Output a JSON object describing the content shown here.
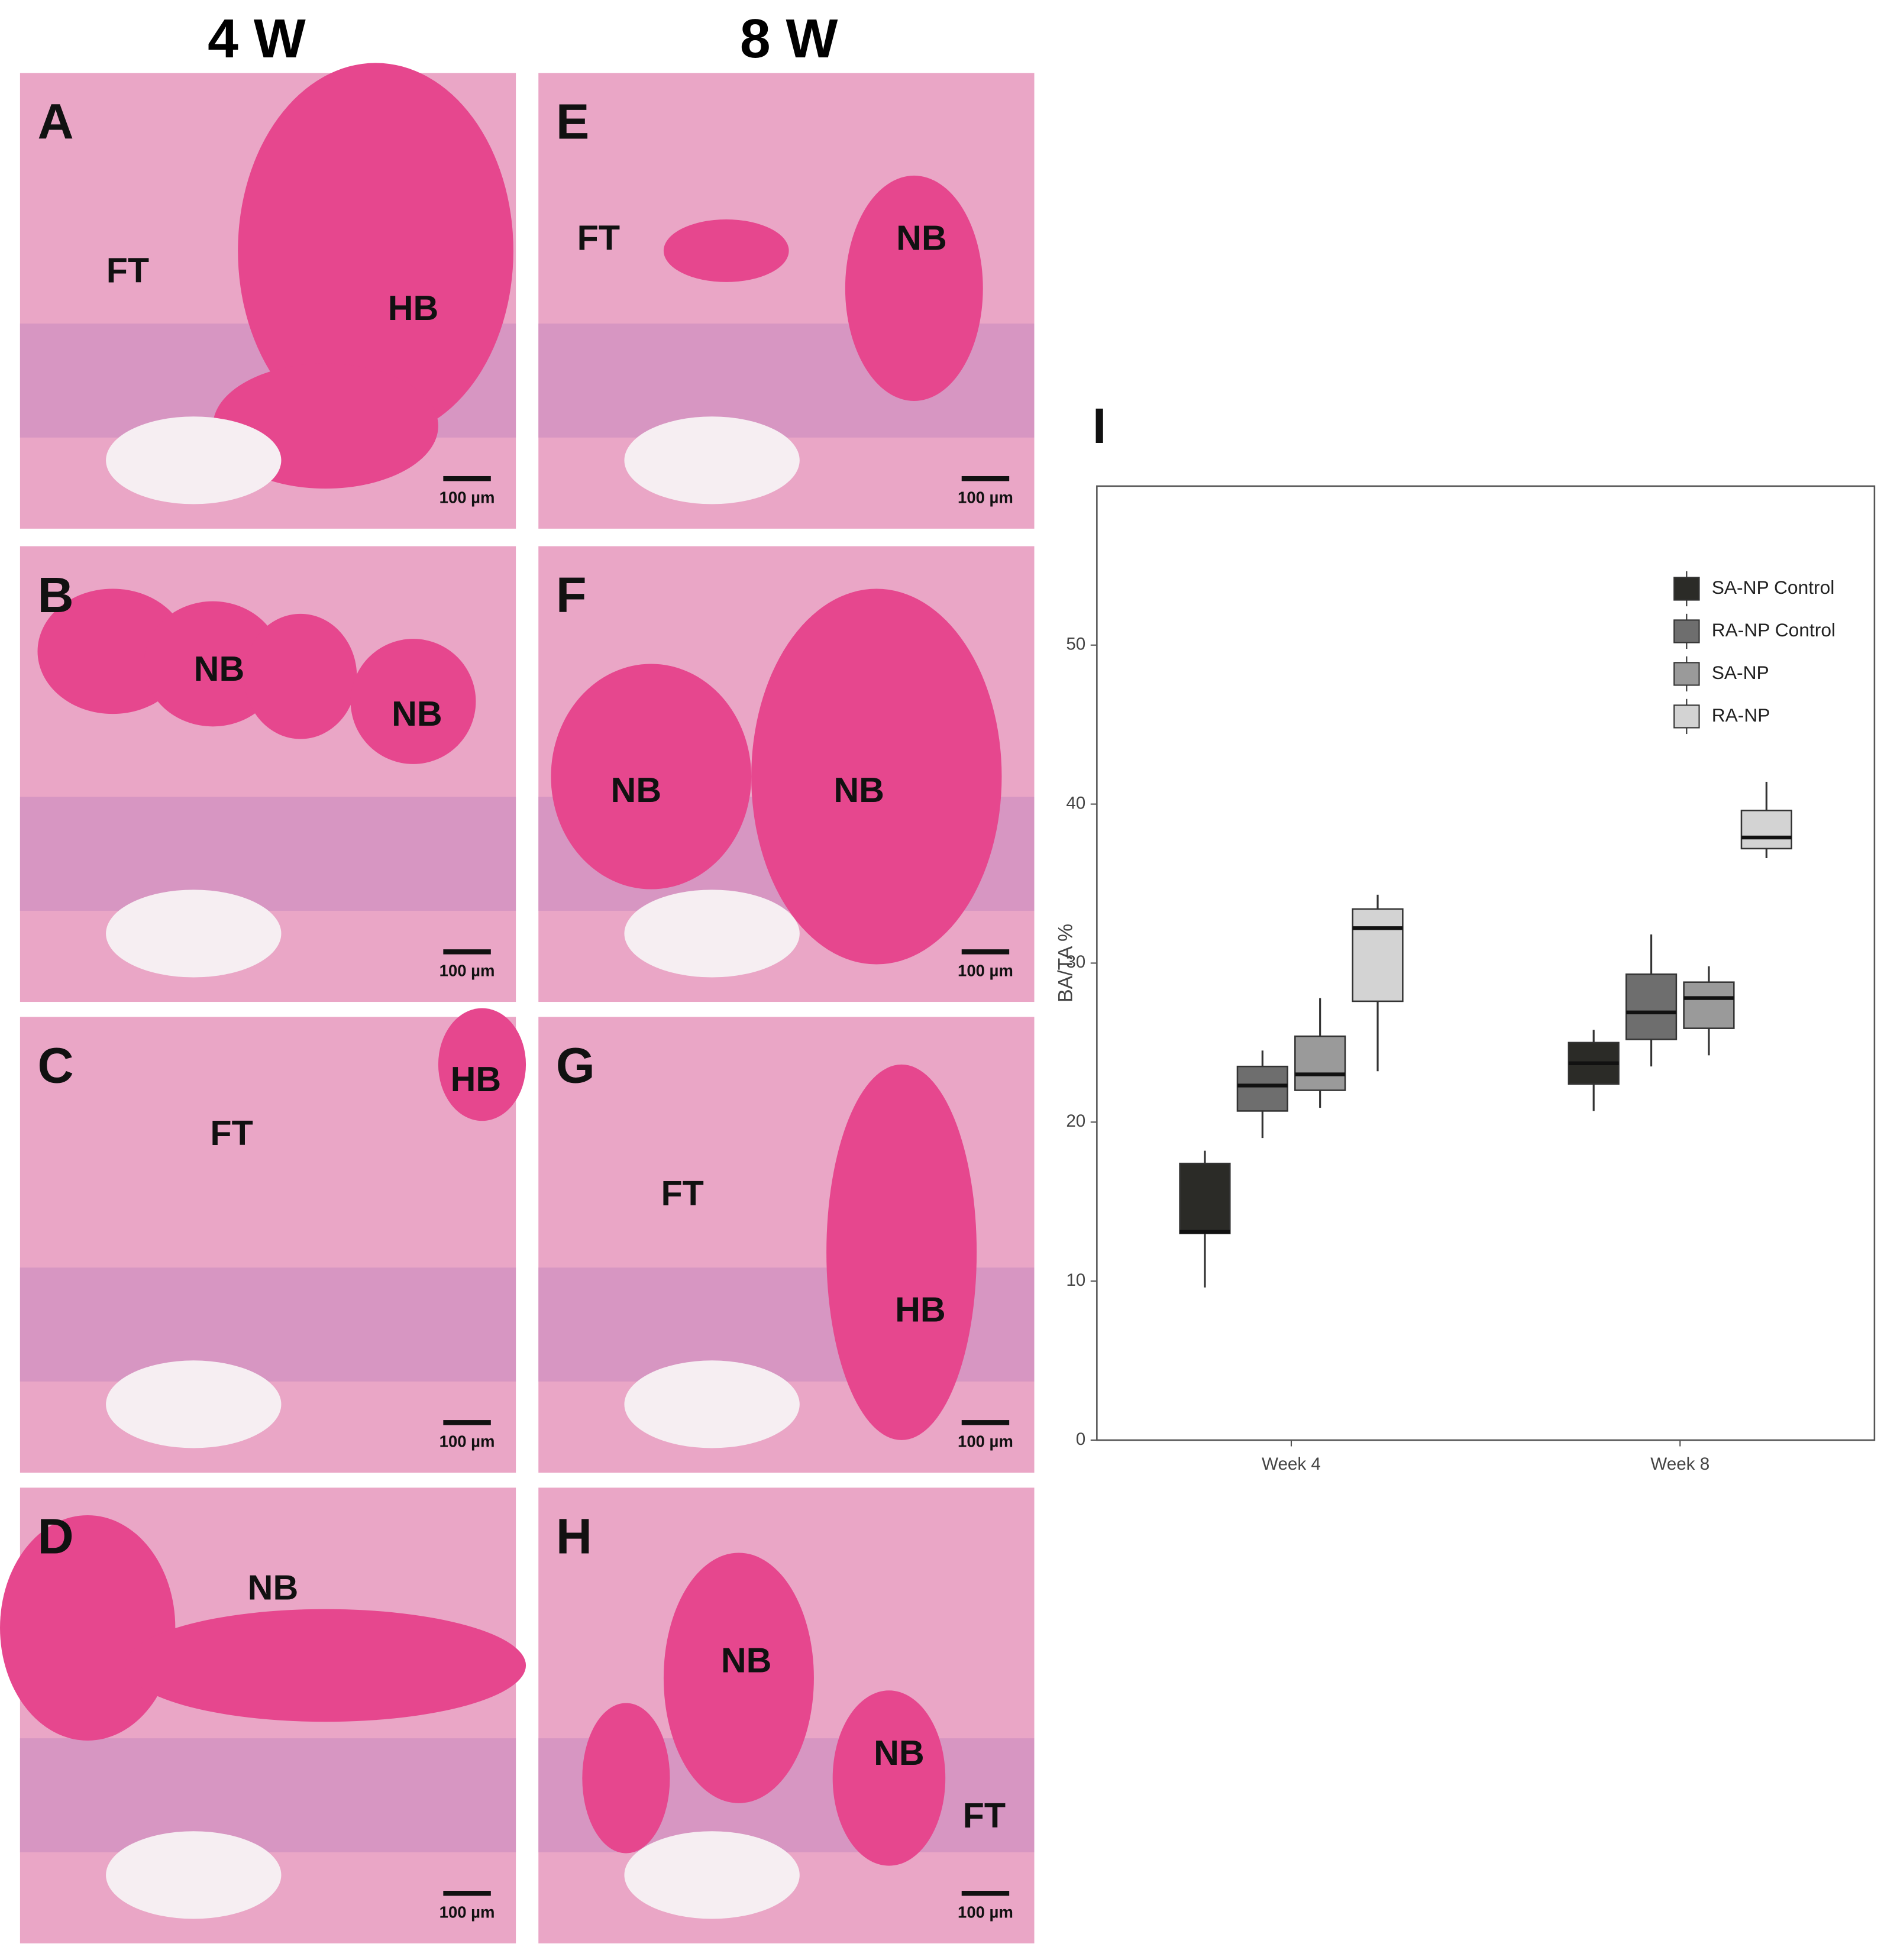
{
  "figure": {
    "columns": [
      "4 W",
      "8 W"
    ],
    "panels": [
      {
        "label": "A",
        "tags": [
          "FT",
          "HB"
        ],
        "scale": "100 µm"
      },
      {
        "label": "B",
        "tags": [
          "NB",
          "NB"
        ],
        "scale": "100 µm"
      },
      {
        "label": "C",
        "tags": [
          "HB",
          "FT"
        ],
        "scale": "100 µm"
      },
      {
        "label": "D",
        "tags": [
          "NB"
        ],
        "scale": "100 µm"
      },
      {
        "label": "E",
        "tags": [
          "FT",
          "NB"
        ],
        "scale": "100 µm"
      },
      {
        "label": "F",
        "tags": [
          "NB",
          "NB"
        ],
        "scale": "100 µm"
      },
      {
        "label": "G",
        "tags": [
          "FT",
          "HB"
        ],
        "scale": "100 µm"
      },
      {
        "label": "H",
        "tags": [
          "NB",
          "NB",
          "FT"
        ],
        "scale": "100 µm"
      }
    ]
  },
  "chart_data": {
    "type": "box",
    "panel_label": "I",
    "ylabel": "BA/TA %",
    "categories": [
      "Week 4",
      "Week 8"
    ],
    "ylim": [
      0,
      60
    ],
    "yticks": [
      0,
      10,
      20,
      30,
      40,
      50
    ],
    "legend": "top-right",
    "series": [
      {
        "name": "SA-NP Control",
        "color": "#2b2b27",
        "boxes": [
          {
            "min": 9.6,
            "q1": 13.0,
            "median": 13.1,
            "q3": 17.4,
            "max": 18.2
          },
          {
            "min": 20.7,
            "q1": 22.4,
            "median": 23.7,
            "q3": 25.0,
            "max": 25.8
          }
        ]
      },
      {
        "name": "RA-NP Control",
        "color": "#6e6e6e",
        "boxes": [
          {
            "min": 19.0,
            "q1": 20.7,
            "median": 22.3,
            "q3": 23.5,
            "max": 24.5
          },
          {
            "min": 23.5,
            "q1": 25.2,
            "median": 26.9,
            "q3": 29.3,
            "max": 31.8
          }
        ]
      },
      {
        "name": "SA-NP",
        "color": "#9a9a9a",
        "boxes": [
          {
            "min": 20.9,
            "q1": 22.0,
            "median": 23.0,
            "q3": 25.4,
            "max": 27.8
          },
          {
            "min": 24.2,
            "q1": 25.9,
            "median": 27.8,
            "q3": 28.8,
            "max": 29.8
          }
        ]
      },
      {
        "name": "RA-NP",
        "color": "#d3d3d3",
        "boxes": [
          {
            "min": 23.2,
            "q1": 27.6,
            "median": 32.2,
            "q3": 33.4,
            "max": 34.3
          },
          {
            "min": 36.6,
            "q1": 37.2,
            "median": 37.9,
            "q3": 39.6,
            "max": 41.4
          }
        ]
      }
    ]
  }
}
